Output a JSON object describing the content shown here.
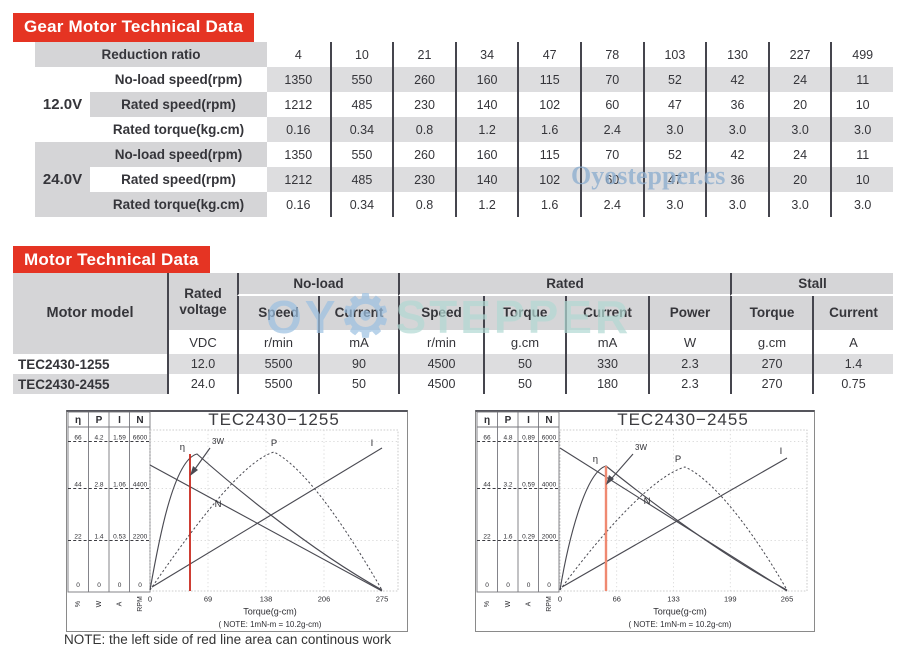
{
  "banner1": "Gear Motor Technical Data",
  "banner2": "Motor Technical Data",
  "colors": {
    "banner_red": "#e53423",
    "header_gray": "#d5d5d7",
    "stripe_gray": "#dddddf",
    "table_line": "#45454d",
    "red_line_left_chart": "#c9281d",
    "red_line_right_chart": "#ef8971",
    "watermark_blue": "#8fafd0",
    "watermark_teal": "#b9dcd9"
  },
  "gear_table": {
    "ratio_label": "Reduction ratio",
    "ratios": [
      "4",
      "10",
      "21",
      "34",
      "47",
      "78",
      "103",
      "130",
      "227",
      "499"
    ],
    "groups": [
      {
        "voltage": "12.0V",
        "rows": [
          {
            "label": "No-load speed(rpm)",
            "values": [
              "1350",
              "550",
              "260",
              "160",
              "115",
              "70",
              "52",
              "42",
              "24",
              "11"
            ]
          },
          {
            "label": "Rated speed(rpm)",
            "values": [
              "1212",
              "485",
              "230",
              "140",
              "102",
              "60",
              "47",
              "36",
              "20",
              "10"
            ]
          },
          {
            "label": "Rated torque(kg.cm)",
            "values": [
              "0.16",
              "0.34",
              "0.8",
              "1.2",
              "1.6",
              "2.4",
              "3.0",
              "3.0",
              "3.0",
              "3.0"
            ]
          }
        ]
      },
      {
        "voltage": "24.0V",
        "rows": [
          {
            "label": "No-load speed(rpm)",
            "values": [
              "1350",
              "550",
              "260",
              "160",
              "115",
              "70",
              "52",
              "42",
              "24",
              "11"
            ]
          },
          {
            "label": "Rated speed(rpm)",
            "values": [
              "1212",
              "485",
              "230",
              "140",
              "102",
              "60",
              "47",
              "36",
              "20",
              "10"
            ]
          },
          {
            "label": "Rated torque(kg.cm)",
            "values": [
              "0.16",
              "0.34",
              "0.8",
              "1.2",
              "1.6",
              "2.4",
              "3.0",
              "3.0",
              "3.0",
              "3.0"
            ]
          }
        ]
      }
    ]
  },
  "motor_table": {
    "model_header": "Motor model",
    "voltage_header": "Rated voltage",
    "groups": [
      {
        "label": "No-load",
        "cols": [
          "Speed",
          "Current"
        ]
      },
      {
        "label": "Rated",
        "cols": [
          "Speed",
          "Torque",
          "Current",
          "Power"
        ]
      },
      {
        "label": "Stall",
        "cols": [
          "Torque",
          "Current"
        ]
      }
    ],
    "units": [
      "VDC",
      "r/min",
      "mA",
      "r/min",
      "g.cm",
      "mA",
      "W",
      "g.cm",
      "A"
    ],
    "rows": [
      {
        "model": "TEC2430-1255",
        "values": [
          "12.0",
          "5500",
          "90",
          "4500",
          "50",
          "330",
          "2.3",
          "270",
          "1.4"
        ]
      },
      {
        "model": "TEC2430-2455",
        "values": [
          "24.0",
          "5500",
          "50",
          "4500",
          "50",
          "180",
          "2.3",
          "270",
          "0.75"
        ]
      }
    ]
  },
  "watermarks": {
    "small": "Oyostepper.es",
    "chart": "Oyostepper.es",
    "big_left": "OY",
    "big_right": "STEPPER",
    "gear_icon": "⚙"
  },
  "charts": [
    {
      "title": "TEC2430−1255",
      "panel": {
        "headers": [
          "η",
          "P",
          "I",
          "N"
        ],
        "rows": [
          [
            "66",
            "4.2",
            "1.59",
            "6600"
          ],
          [
            "44",
            "2.8",
            "1.06",
            "4400"
          ],
          [
            "22",
            "1.4",
            "0.53",
            "2200"
          ]
        ],
        "zeros": [
          "0",
          "0",
          "0",
          "0"
        ],
        "units": [
          "%",
          "W",
          "A",
          "RPM"
        ]
      },
      "x_ticks": [
        "0",
        "69",
        "138",
        "206",
        "275"
      ],
      "xlabel": "Torque(g-cm)",
      "note": "( NOTE: 1mN-m = 10.2g-cm)",
      "labels": {
        "eta": "η",
        "power": "P",
        "current": "I",
        "speed": "N",
        "annotation": "3W"
      }
    },
    {
      "title": "TEC2430−2455",
      "panel": {
        "headers": [
          "η",
          "P",
          "I",
          "N"
        ],
        "rows": [
          [
            "66",
            "4.8",
            "0.89",
            "6000"
          ],
          [
            "44",
            "3.2",
            "0.59",
            "4000"
          ],
          [
            "22",
            "1.6",
            "0.29",
            "2000"
          ]
        ],
        "zeros": [
          "0",
          "0",
          "0",
          "0"
        ],
        "units": [
          "%",
          "W",
          "A",
          "RPM"
        ]
      },
      "x_ticks": [
        "0",
        "66",
        "133",
        "199",
        "265"
      ],
      "xlabel": "Torque(g-cm)",
      "note": "( NOTE: 1mN-m = 10.2g-cm)",
      "labels": {
        "eta": "η",
        "power": "P",
        "current": "I",
        "speed": "N",
        "annotation": "3W"
      }
    }
  ],
  "footnote": "NOTE: the left side of red line area can continous work",
  "chart_data": [
    {
      "type": "line",
      "title": "TEC2430-1255",
      "xlabel": "Torque(g-cm)",
      "x_range": [
        0,
        275
      ],
      "x_ticks": [
        0,
        69,
        138,
        206,
        275
      ],
      "axes": [
        {
          "name": "η",
          "unit": "%",
          "ticks": [
            0,
            22,
            44,
            66
          ]
        },
        {
          "name": "P",
          "unit": "W",
          "ticks": [
            0,
            1.4,
            2.8,
            4.2
          ]
        },
        {
          "name": "I",
          "unit": "A",
          "ticks": [
            0,
            0.53,
            1.06,
            1.59
          ]
        },
        {
          "name": "N",
          "unit": "RPM",
          "ticks": [
            0,
            2200,
            4400,
            6600
          ]
        }
      ],
      "series": [
        {
          "name": "η",
          "unit": "%",
          "points": [
            [
              0,
              0
            ],
            [
              20,
              48
            ],
            [
              50,
              66
            ],
            [
              100,
              56
            ],
            [
              180,
              32
            ],
            [
              275,
              0
            ]
          ]
        },
        {
          "name": "P",
          "unit": "W",
          "points": [
            [
              0,
              0
            ],
            [
              69,
              2.1
            ],
            [
              138,
              3.7
            ],
            [
              206,
              2.9
            ],
            [
              275,
              0
            ]
          ]
        },
        {
          "name": "I",
          "unit": "A",
          "points": [
            [
              0,
              0.09
            ],
            [
              275,
              1.6
            ]
          ]
        },
        {
          "name": "N",
          "unit": "RPM",
          "points": [
            [
              0,
              5500
            ],
            [
              275,
              0
            ]
          ]
        }
      ],
      "red_line_x": 48,
      "annotation": "3W",
      "note": "( NOTE: 1mN-m = 10.2g-cm)",
      "grid": true,
      "legend": false
    },
    {
      "type": "line",
      "title": "TEC2430-2455",
      "xlabel": "Torque(g-cm)",
      "x_range": [
        0,
        265
      ],
      "x_ticks": [
        0,
        66,
        133,
        199,
        265
      ],
      "axes": [
        {
          "name": "η",
          "unit": "%",
          "ticks": [
            0,
            22,
            44,
            66
          ]
        },
        {
          "name": "P",
          "unit": "W",
          "ticks": [
            0,
            1.6,
            3.2,
            4.8
          ]
        },
        {
          "name": "I",
          "unit": "A",
          "ticks": [
            0,
            0.29,
            0.59,
            0.89
          ]
        },
        {
          "name": "N",
          "unit": "RPM",
          "ticks": [
            0,
            2000,
            4000,
            6000
          ]
        }
      ],
      "series": [
        {
          "name": "η",
          "unit": "%",
          "points": [
            [
              0,
              0
            ],
            [
              20,
              50
            ],
            [
              55,
              66
            ],
            [
              110,
              54
            ],
            [
              265,
              0
            ]
          ]
        },
        {
          "name": "P",
          "unit": "W",
          "points": [
            [
              0,
              0
            ],
            [
              66,
              2.4
            ],
            [
              133,
              4.3
            ],
            [
              199,
              3.3
            ],
            [
              265,
              0
            ]
          ]
        },
        {
          "name": "I",
          "unit": "A",
          "points": [
            [
              0,
              0.05
            ],
            [
              265,
              0.9
            ]
          ]
        },
        {
          "name": "N",
          "unit": "RPM",
          "points": [
            [
              0,
              5500
            ],
            [
              265,
              0
            ]
          ]
        }
      ],
      "red_line_x": 53,
      "annotation": "3W",
      "note": "( NOTE: 1mN-m = 10.2g-cm)",
      "grid": true,
      "legend": false
    }
  ]
}
